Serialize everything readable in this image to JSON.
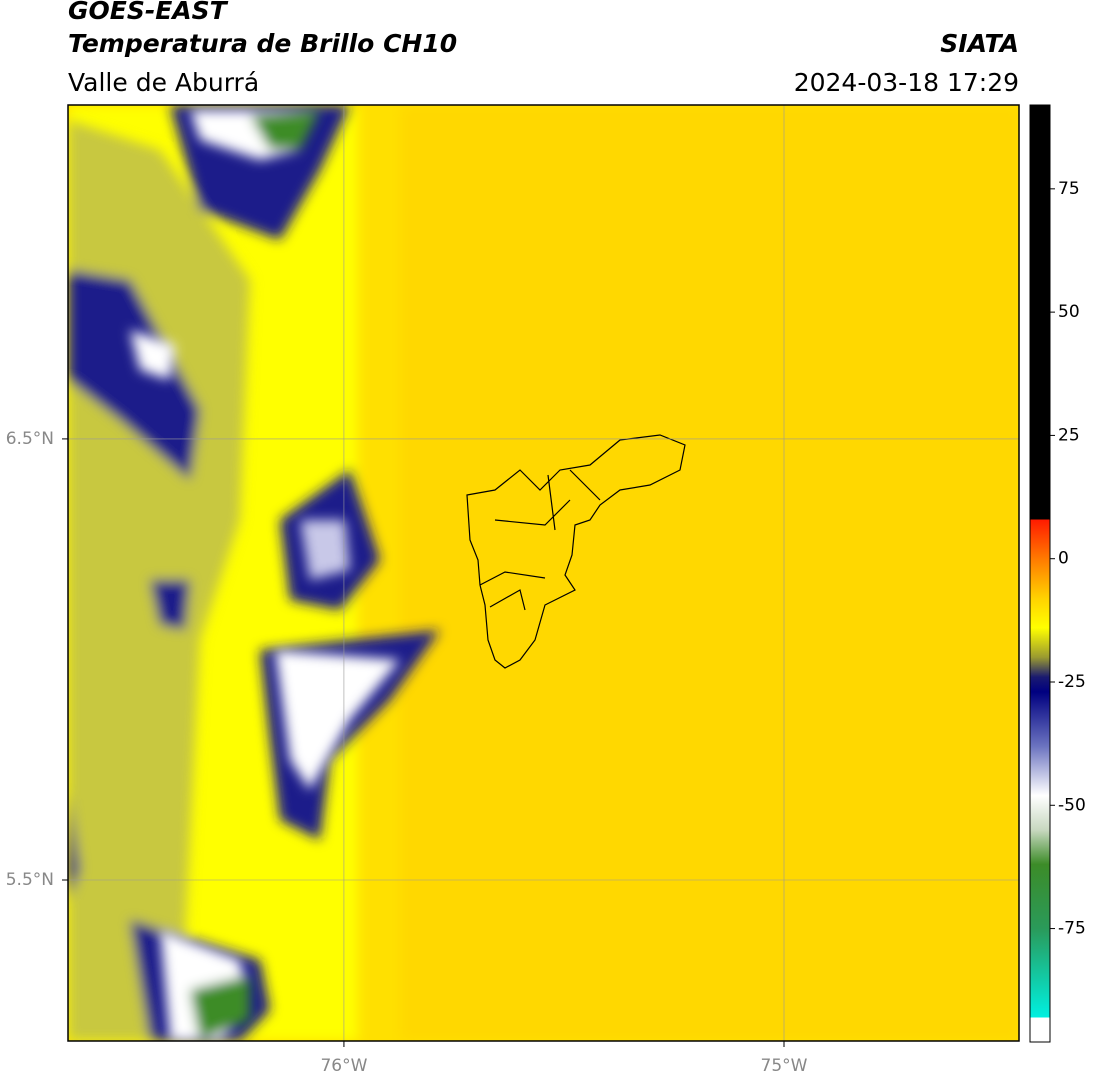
{
  "header": {
    "title": "GOES-EAST",
    "subtitle": "Temperatura de Brillo CH10",
    "region": "Valle de Aburrá",
    "source": "SIATA",
    "timestamp": "2024-03-18 17:29"
  },
  "map": {
    "xlim": [
      -76.627,
      -74.466
    ],
    "ylim": [
      5.135,
      7.257
    ],
    "xticks": [
      {
        "value": -76,
        "label": "76°W"
      },
      {
        "value": -75,
        "label": "75°W"
      }
    ],
    "yticks": [
      {
        "value": 6.5,
        "label": "6.5°N"
      },
      {
        "value": 5.5,
        "label": "5.5°N"
      }
    ],
    "grid": true
  },
  "colorbar": {
    "clim": [
      -98,
      92
    ],
    "ticks": [
      75,
      50,
      25,
      0,
      -25,
      -50,
      -75
    ],
    "colormap": [
      {
        "value": 92,
        "color": "#000000"
      },
      {
        "value": 8,
        "color": "#000000"
      },
      {
        "value": 8,
        "color": "#ff1a00"
      },
      {
        "value": 0,
        "color": "#ff7a00"
      },
      {
        "value": -8,
        "color": "#ffd200"
      },
      {
        "value": -14,
        "color": "#ffff00"
      },
      {
        "value": -20,
        "color": "#9a9a30"
      },
      {
        "value": -24,
        "color": "#1a1a70"
      },
      {
        "value": -27,
        "color": "#000080"
      },
      {
        "value": -38,
        "color": "#6b73c0"
      },
      {
        "value": -48,
        "color": "#ffffff"
      },
      {
        "value": -55,
        "color": "#c8d8c0"
      },
      {
        "value": -62,
        "color": "#3c8c28"
      },
      {
        "value": -75,
        "color": "#2a9a5a"
      },
      {
        "value": -93,
        "color": "#00f0e0"
      },
      {
        "value": -93,
        "color": "#ffffff"
      },
      {
        "value": -98,
        "color": "#ffffff"
      }
    ]
  }
}
